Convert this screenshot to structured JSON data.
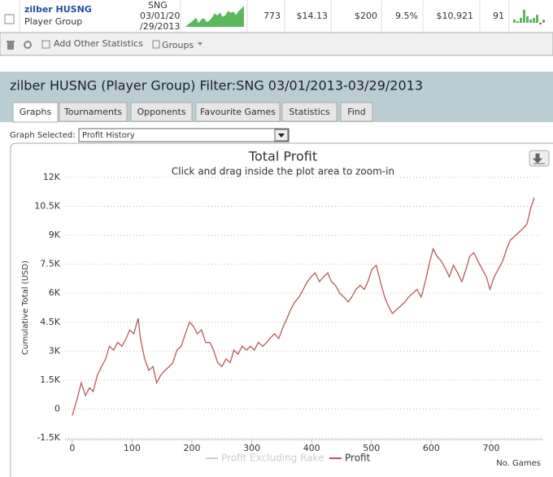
{
  "row": {
    "name": "zilber HUSNG",
    "group": "Player Group",
    "filter_lines": [
      "SNG",
      "03/01/20",
      "/29/2013"
    ],
    "stats": [
      "773",
      "$14.13",
      "$200",
      "9.5%",
      "$10,921",
      "91"
    ],
    "sparkline": {
      "values": [
        0,
        1350,
        2200,
        3450,
        4700,
        2000,
        3900,
        4500,
        2400,
        3250,
        4700,
        7050,
        5800,
        7450,
        5150,
        6000,
        8300,
        7250,
        7900,
        6200,
        8300,
        9350,
        10950
      ],
      "color": "#5cb85c"
    },
    "mini_bars": {
      "values": [
        2,
        1,
        3,
        8,
        4,
        2,
        3,
        5,
        -1,
        2
      ],
      "color": "#5cb85c",
      "negative_color": "#d9534f"
    }
  },
  "toolbar": {
    "add_stats": "Add Other Statistics",
    "groups": "Groups"
  },
  "panel_title": "zilber HUSNG (Player Group) Filter:SNG 03/01/2013-03/29/2013",
  "tabs": [
    "Graphs",
    "Tournaments",
    "Opponents",
    "Favourite Games",
    "Statistics",
    "Find"
  ],
  "active_tab": 0,
  "graph_selected_label": "Graph Selected:",
  "graph_selected": "Profit History",
  "chart_data": {
    "type": "line",
    "title": "Total Profit",
    "subtitle": "Click and drag inside the plot area to zoom-in",
    "x_label": "No. Games",
    "y_label": "Cumulative Total (USD)",
    "x": [
      0,
      8,
      15,
      22,
      29,
      35,
      42,
      49,
      56,
      62,
      69,
      76,
      83,
      90,
      96,
      103,
      110,
      114,
      121,
      128,
      135,
      141,
      148,
      155,
      162,
      168,
      175,
      182,
      189,
      196,
      202,
      209,
      216,
      223,
      230,
      236,
      243,
      250,
      257,
      264,
      270,
      277,
      284,
      291,
      298,
      304,
      311,
      318,
      325,
      330,
      338,
      345,
      353,
      359,
      365,
      372,
      379,
      386,
      393,
      399,
      406,
      413,
      420,
      427,
      433,
      440,
      447,
      454,
      461,
      467,
      474,
      481,
      488,
      494,
      501,
      508,
      515,
      522,
      528,
      535,
      542,
      549,
      556,
      562,
      569,
      576,
      583,
      590,
      596,
      603,
      610,
      617,
      624,
      630,
      637,
      644,
      651,
      658,
      664,
      671,
      678,
      685,
      692,
      698,
      705,
      712,
      719,
      726,
      732,
      739,
      746,
      753,
      760,
      766,
      772
    ],
    "series": [
      {
        "name": "Profit Excluding Rake",
        "color": "#cccccc",
        "visible": false
      },
      {
        "name": "Profit",
        "color": "#b55a58",
        "values": [
          -340,
          500,
          1350,
          700,
          1100,
          900,
          1750,
          2200,
          2600,
          3250,
          3050,
          3450,
          3250,
          3650,
          4100,
          3900,
          4700,
          3650,
          2600,
          2000,
          2200,
          1350,
          1750,
          2000,
          2200,
          2400,
          3050,
          3250,
          3900,
          4500,
          4300,
          3900,
          4100,
          3450,
          3450,
          3050,
          2400,
          2200,
          2600,
          2400,
          3050,
          2850,
          3250,
          3050,
          3250,
          3050,
          3450,
          3250,
          3450,
          3650,
          3900,
          3650,
          4300,
          4700,
          5150,
          5550,
          5800,
          6200,
          6600,
          6850,
          7050,
          6600,
          6850,
          7050,
          6600,
          6400,
          6000,
          5800,
          5550,
          5800,
          6200,
          6400,
          6200,
          6600,
          7250,
          7450,
          6600,
          5800,
          5350,
          4950,
          5150,
          5350,
          5550,
          5800,
          6000,
          6200,
          5800,
          6600,
          7450,
          8300,
          7900,
          7650,
          7250,
          6850,
          7450,
          7050,
          6600,
          7250,
          7900,
          8100,
          7650,
          7250,
          6850,
          6200,
          6850,
          7250,
          7650,
          8300,
          8750,
          8950,
          9150,
          9350,
          9600,
          10400,
          10950
        ]
      }
    ],
    "xlim": [
      -12,
      787
    ],
    "xticks": [
      0,
      100,
      200,
      300,
      400,
      500,
      600,
      700
    ],
    "ylim": [
      -1500,
      12000
    ],
    "yticks": [
      {
        "value": -1500,
        "label": "-1.5K"
      },
      0,
      {
        "value": 1500,
        "label": "1.5K"
      },
      {
        "value": 3000,
        "label": "3K"
      },
      {
        "value": 4500,
        "label": "4.5K"
      },
      {
        "value": 6000,
        "label": "6K"
      },
      {
        "value": 7500,
        "label": "7.5K"
      },
      {
        "value": 9000,
        "label": "9K"
      },
      {
        "value": 10500,
        "label": "10.5K"
      },
      {
        "value": 12000,
        "label": "12K"
      }
    ],
    "grid": true,
    "legend": "bottom"
  }
}
